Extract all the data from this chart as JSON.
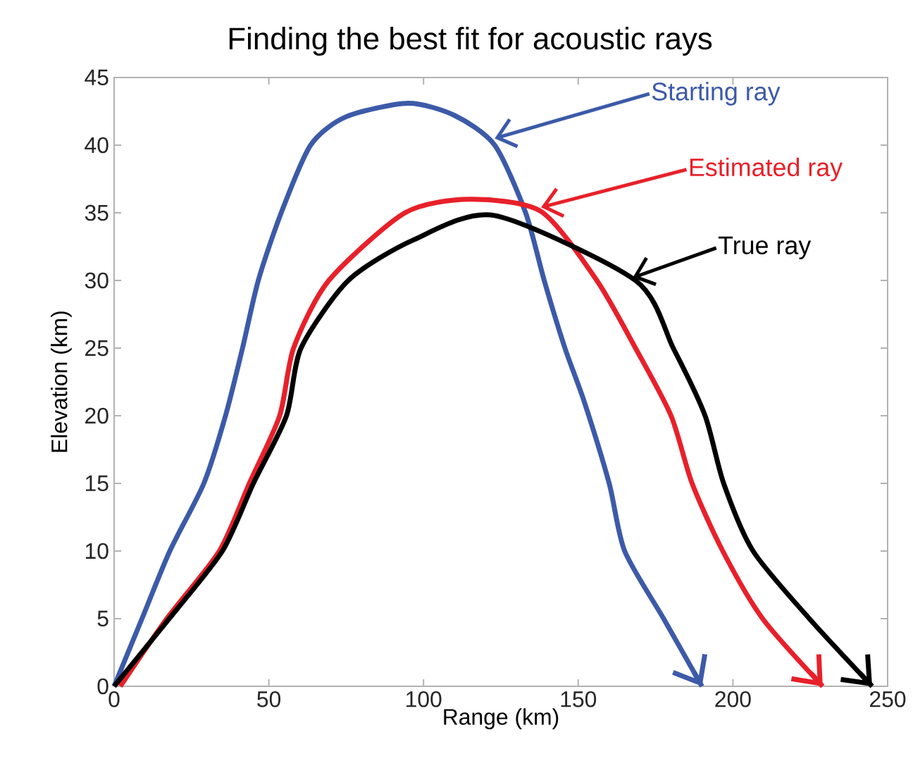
{
  "chart_data": {
    "type": "line",
    "title": "Finding the best fit for acoustic rays",
    "xlabel": "Range (km)",
    "ylabel": "Elevation (km)",
    "xlim": [
      0,
      250
    ],
    "ylim": [
      0,
      45
    ],
    "xticks": [
      0,
      50,
      100,
      150,
      200,
      250
    ],
    "yticks": [
      0,
      5,
      10,
      15,
      20,
      25,
      30,
      35,
      40,
      45
    ],
    "series": [
      {
        "color": "#3c5aa8",
        "x": [
          0,
          9,
          18,
          29,
          36,
          41.5,
          46.6,
          54,
          63.5,
          75,
          95,
          110,
          123,
          133,
          139,
          145.7,
          152,
          160,
          165,
          177.6,
          190
        ],
        "values": [
          0,
          5,
          10,
          15,
          20,
          25,
          30,
          35,
          40,
          42.1,
          43.1,
          42.2,
          40,
          35,
          30,
          25,
          21,
          15,
          10,
          5,
          0
        ]
      },
      {
        "color": "#e8202a",
        "x": [
          2,
          17,
          34,
          43.7,
          53.5,
          58,
          69.4,
          94,
          115,
          138,
          156,
          168.5,
          180,
          186.8,
          196.7,
          209.6,
          229
        ],
        "values": [
          0,
          5,
          10,
          15,
          20,
          25,
          30,
          35,
          36,
          35.1,
          30,
          25,
          20,
          15,
          10,
          5,
          0
        ]
      },
      {
        "color": "#000000",
        "x": [
          0,
          17.8,
          35,
          45,
          55.7,
          60.4,
          75.7,
          96.8,
          123,
          168.5,
          180.7,
          191,
          197,
          206.5,
          224.7,
          245
        ],
        "values": [
          0,
          5,
          10,
          15,
          20,
          25,
          30,
          33,
          34.8,
          30,
          25,
          20,
          15,
          10,
          5,
          0
        ]
      }
    ],
    "annotations": [
      {
        "text": "Starting ray",
        "x": 123,
        "y": 40.5
      },
      {
        "text": "Estimated ray",
        "x": 138,
        "y": 35.4
      },
      {
        "text": "True ray",
        "x": 167.6,
        "y": 30.2
      }
    ]
  }
}
